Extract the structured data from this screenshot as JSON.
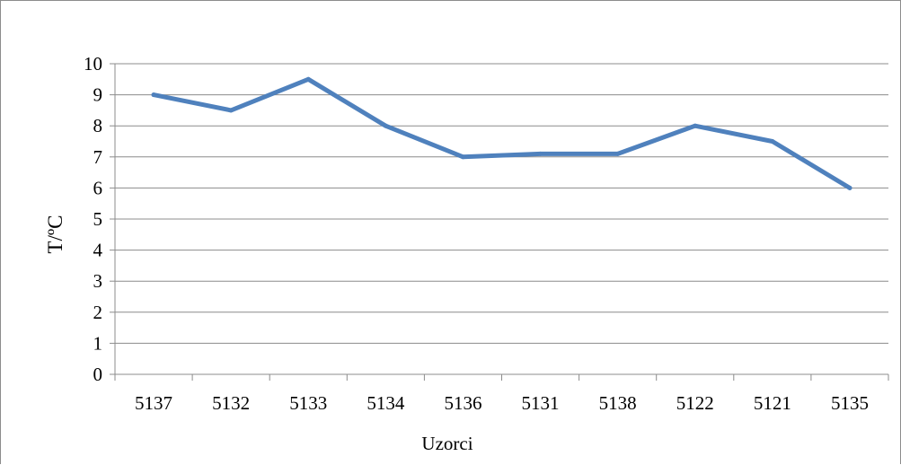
{
  "chart_data": {
    "type": "line",
    "xlabel": "Uzorci",
    "ylabel": "T/ºC",
    "categories": [
      "5137",
      "5132",
      "5133",
      "5134",
      "5136",
      "5131",
      "5138",
      "5122",
      "5121",
      "5135"
    ],
    "series": [
      {
        "values": [
          9,
          8.5,
          9.5,
          8,
          7,
          7.1,
          7.1,
          8,
          7.5,
          6
        ]
      }
    ],
    "ylim": [
      0,
      10
    ],
    "yticks": [
      "0",
      "1",
      "2",
      "3",
      "4",
      "5",
      "6",
      "7",
      "8",
      "9",
      "10"
    ],
    "grid": "horizontal",
    "legend": "none",
    "line_color": "#4f81bd",
    "grid_color": "#8c8c8c"
  }
}
